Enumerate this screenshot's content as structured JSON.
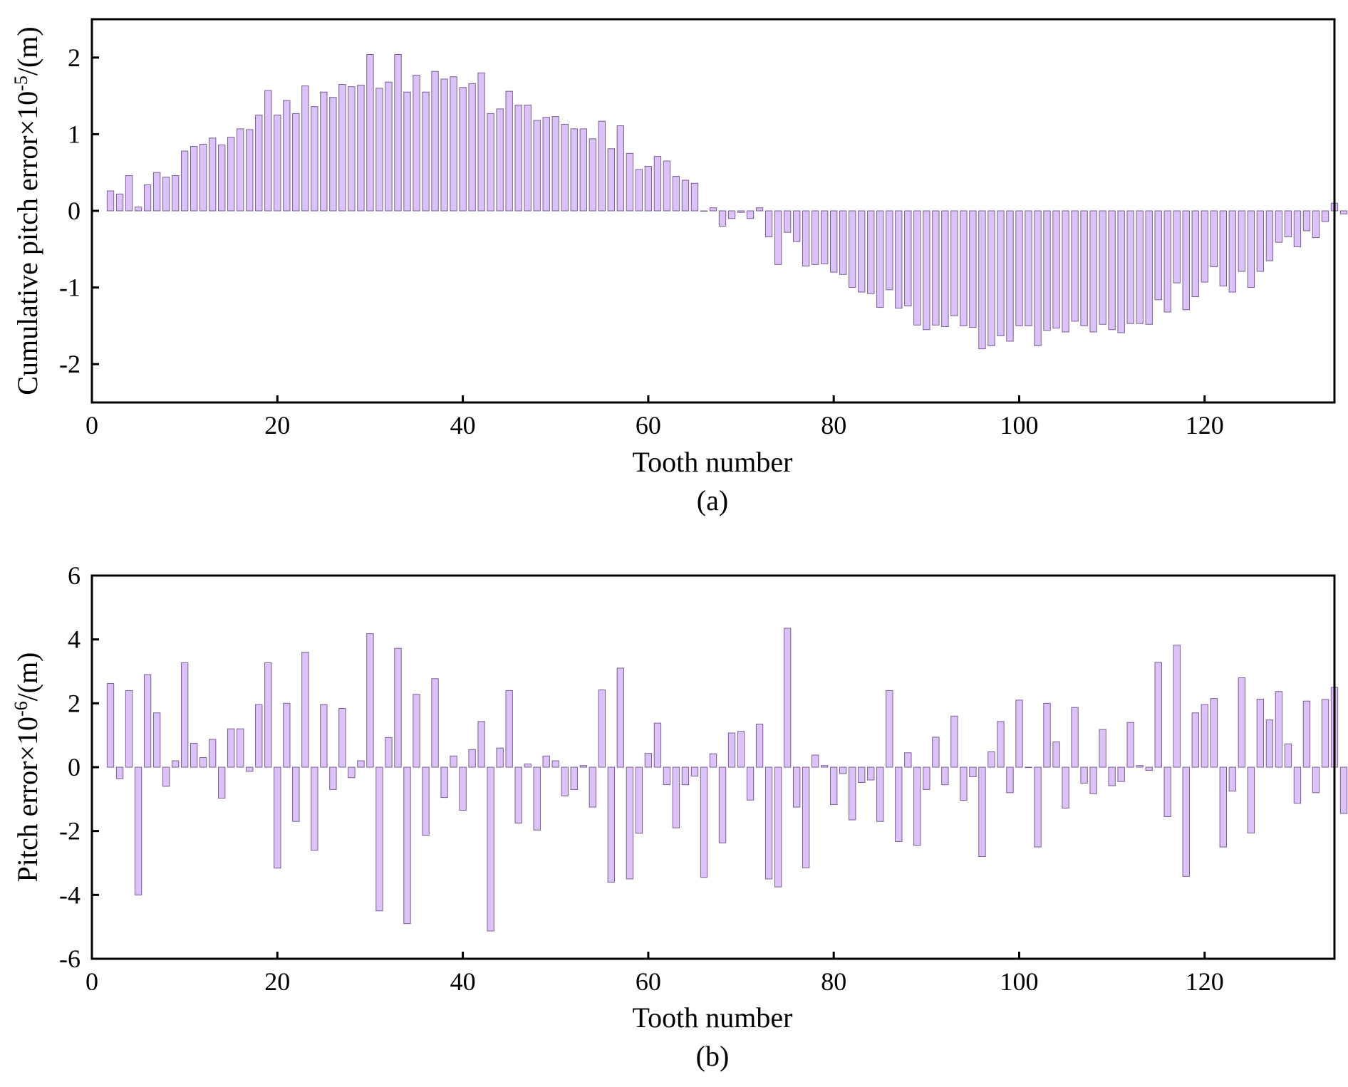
{
  "colors": {
    "bar_fill": "#dcc3f7",
    "bar_stroke": "#7a5f95",
    "axis": "#000000"
  },
  "chart_data": [
    {
      "type": "bar",
      "caption": "(a)",
      "xlabel": "Tooth number",
      "ylabel": "Cumulative pitch error×10",
      "ylabel_exponent": "-5",
      "ylabel_unit": "/(m)",
      "xlim": [
        0,
        134
      ],
      "ylim": [
        -2.5,
        2.5
      ],
      "xticks": [
        0,
        20,
        40,
        60,
        80,
        100,
        120
      ],
      "yticks": [
        -2,
        -1,
        0,
        1,
        2
      ],
      "grid": false,
      "x_start": 2,
      "values": [
        0.26,
        0.22,
        0.46,
        0.05,
        0.34,
        0.5,
        0.44,
        0.46,
        0.78,
        0.84,
        0.87,
        0.95,
        0.86,
        0.96,
        1.07,
        1.06,
        1.25,
        1.57,
        1.25,
        1.44,
        1.27,
        1.63,
        1.36,
        1.55,
        1.48,
        1.65,
        1.62,
        1.64,
        2.04,
        1.6,
        1.68,
        2.04,
        1.55,
        1.77,
        1.55,
        1.82,
        1.72,
        1.75,
        1.61,
        1.66,
        1.8,
        1.27,
        1.33,
        1.56,
        1.38,
        1.38,
        1.18,
        1.22,
        1.23,
        1.13,
        1.07,
        1.07,
        0.94,
        1.17,
        0.81,
        1.11,
        0.75,
        0.54,
        0.58,
        0.71,
        0.65,
        0.45,
        0.4,
        0.36,
        0.0,
        0.04,
        -0.2,
        -0.1,
        -0.02,
        -0.1,
        0.04,
        -0.34,
        -0.7,
        -0.28,
        -0.4,
        -0.72,
        -0.7,
        -0.69,
        -0.8,
        -0.83,
        -1.0,
        -1.06,
        -1.08,
        -1.26,
        -1.03,
        -1.27,
        -1.24,
        -1.49,
        -1.55,
        -1.49,
        -1.51,
        -1.37,
        -1.5,
        -1.52,
        -1.8,
        -1.76,
        -1.63,
        -1.7,
        -1.5,
        -1.5,
        -1.76,
        -1.56,
        -1.53,
        -1.58,
        -1.44,
        -1.5,
        -1.58,
        -1.48,
        -1.55,
        -1.59,
        -1.47,
        -1.47,
        -1.48,
        -1.16,
        -1.32,
        -0.94,
        -1.29,
        -1.12,
        -0.93,
        -0.73,
        -0.98,
        -1.06,
        -0.79,
        -1.0,
        -0.79,
        -0.65,
        -0.41,
        -0.34,
        -0.47,
        -0.26,
        -0.35,
        -0.14,
        0.1,
        -0.04
      ]
    },
    {
      "type": "bar",
      "caption": "(b)",
      "xlabel": "Tooth number",
      "ylabel": "Pitch error×10",
      "ylabel_exponent": "-6",
      "ylabel_unit": "/(m)",
      "xlim": [
        0,
        134
      ],
      "ylim": [
        -6,
        6
      ],
      "xticks": [
        0,
        20,
        40,
        60,
        80,
        100,
        120
      ],
      "yticks": [
        -6,
        -4,
        -2,
        0,
        2,
        4,
        6
      ],
      "grid": false,
      "x_start": 2,
      "values": [
        2.62,
        -0.36,
        2.4,
        -4.0,
        2.9,
        1.7,
        -0.6,
        0.2,
        3.27,
        0.75,
        0.3,
        0.87,
        -0.97,
        1.2,
        1.2,
        -0.13,
        1.96,
        3.27,
        -3.16,
        2.0,
        -1.7,
        3.6,
        -2.6,
        1.96,
        -0.7,
        1.84,
        -0.33,
        0.2,
        4.18,
        -4.5,
        0.93,
        3.72,
        -4.9,
        2.28,
        -2.13,
        2.77,
        -0.95,
        0.35,
        -1.35,
        0.55,
        1.43,
        -5.13,
        0.6,
        2.4,
        -1.75,
        0.1,
        -1.97,
        0.35,
        0.2,
        -0.9,
        -0.7,
        0.05,
        -1.25,
        2.42,
        -3.6,
        3.1,
        -3.5,
        -2.07,
        0.43,
        1.38,
        -0.55,
        -1.9,
        -0.55,
        -0.28,
        -3.45,
        0.42,
        -2.37,
        1.07,
        1.12,
        -1.03,
        1.35,
        -3.5,
        -3.75,
        4.35,
        -1.25,
        -3.15,
        0.38,
        0.05,
        -1.17,
        -0.2,
        -1.65,
        -0.48,
        -0.4,
        -1.7,
        2.4,
        -2.33,
        0.45,
        -2.45,
        -0.7,
        0.94,
        -0.55,
        1.6,
        -1.04,
        -0.3,
        -2.8,
        0.48,
        1.43,
        -0.8,
        2.1,
        0.0,
        -2.5,
        2.0,
        0.79,
        -1.28,
        1.87,
        -0.5,
        -0.83,
        1.18,
        -0.58,
        -0.45,
        1.4,
        0.05,
        -0.1,
        3.28,
        -1.55,
        3.82,
        -3.42,
        1.7,
        1.96,
        2.15,
        -2.5,
        -0.75,
        2.8,
        -2.06,
        2.13,
        1.48,
        2.37,
        0.73,
        -1.13,
        2.07,
        -0.8,
        2.12,
        2.5,
        -1.45
      ]
    }
  ]
}
